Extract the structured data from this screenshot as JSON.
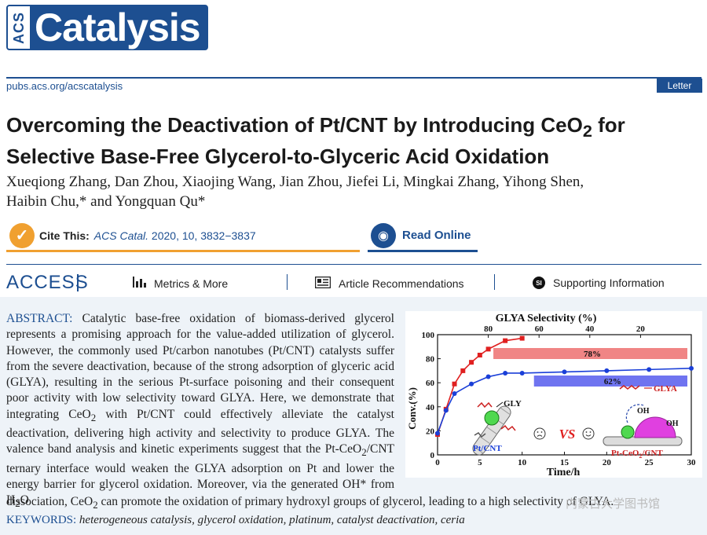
{
  "journal": {
    "logo_acs": "ACS",
    "logo_name": "Catalysis",
    "url": "pubs.acs.org/acscatalysis",
    "article_type": "Letter"
  },
  "article": {
    "title_line1_pre": "Overcoming the Deactivation of Pt/CNT by Introducing CeO",
    "title_line1_sub": "2",
    "title_line1_post": " for",
    "title_line2": "Selective Base-Free Glycerol-to-Glyceric Acid Oxidation",
    "authors_line1": "Xueqiong Zhang, Dan Zhou, Xiaojing Wang, Jian Zhou, Jiefei Li, Mingkai Zhang, Yihong Shen,",
    "authors_line2": "Haibin Chu,* and Yongquan Qu*"
  },
  "cite": {
    "label": "Cite This:",
    "journal_abbr": "ACS Catal.",
    "ref": "2020, 10, 3832−3837"
  },
  "read_online": {
    "label": "Read Online"
  },
  "access": {
    "label": "ACCESS",
    "metrics": "Metrics & More",
    "recommendations": "Article Recommendations",
    "supporting": "Supporting Information",
    "si_icon_text": "SI"
  },
  "abstract": {
    "label": "ABSTRACT:",
    "t1": " Catalytic base-free oxidation of biomass-derived glycerol represents a promising approach for the value-added utilization of glycerol. However, the commonly used Pt/carbon nanotubes (Pt/CNT) catalysts suffer from the severe deactivation, because of the strong adsorption of glyceric acid (GLYA), resulting in the serious Pt-surface poisoning and their consequent poor activity with low selectivity toward GLYA. Here, we demonstrate that integrating CeO",
    "s1": "2",
    "t2": " with Pt/CNT could effectively alleviate the catalyst deactivation, delivering high activity and selectivity to produce GLYA. The valence band analysis and kinetic experiments suggest that the Pt-CeO",
    "s2": "2",
    "t3": "/CNT ternary interface would weaken the GLYA adsorption on Pt and lower the energy barrier for glycerol oxidation. Moreover, via the generated OH* from H",
    "s3": "2",
    "t4": "O",
    "tail_a": "dissociation, CeO",
    "tail_s": "2",
    "tail_b": " can promote the oxidation of primary hydroxyl groups of glycerol, leading to a high selectivity of GLYA."
  },
  "keywords": {
    "label": "KEYWORDS:",
    "text": " heterogeneous catalysis, glycerol oxidation, platinum, catalyst deactivation, ceria"
  },
  "figure": {
    "top_axis_label": "GLYA Selectivity (%)",
    "top_ticks": [
      "80",
      "60",
      "40",
      "20"
    ],
    "bar1_label": "78%",
    "bar2_label": "62%",
    "label_gly": "GLY",
    "label_ptcnt": "Pt/CNT",
    "label_vs": "VS",
    "label_glya": "GLYA",
    "label_oh1": "OH",
    "label_oh2": "OH",
    "label_ptceo2_pre": "Pt-CeO",
    "label_ptceo2_sub": "2",
    "label_ptceo2_post": "/CNT",
    "red": "#e02020",
    "blue": "#1a3fd8",
    "bar_red": "#f08585",
    "bar_blue": "#6f74f0"
  },
  "chart_data": {
    "type": "line",
    "xlabel": "Time/h",
    "ylabel": "Conv.(%)",
    "xlim": [
      0,
      30
    ],
    "ylim": [
      0,
      100
    ],
    "xticks": [
      0,
      5,
      10,
      15,
      20,
      25,
      30
    ],
    "yticks": [
      0,
      20,
      40,
      60,
      80,
      100
    ],
    "top_axis": {
      "label": "GLYA Selectivity (%)",
      "ticks": [
        80,
        60,
        40,
        20
      ]
    },
    "series": [
      {
        "color": "#e02020",
        "x": [
          0,
          1,
          2,
          3,
          4,
          5,
          6,
          8,
          10
        ],
        "y": [
          17,
          38,
          59,
          70,
          77,
          83,
          88,
          95,
          97
        ]
      },
      {
        "color": "#1a3fd8",
        "x": [
          0,
          1,
          2,
          4,
          6,
          8,
          10,
          15,
          20,
          25,
          30
        ],
        "y": [
          18,
          37,
          51,
          59,
          65,
          68,
          68,
          69,
          70,
          71,
          72
        ]
      }
    ],
    "selectivity_bars": [
      {
        "label": "78%",
        "value": 78,
        "color": "#f08585"
      },
      {
        "label": "62%",
        "value": 62,
        "color": "#6f74f0"
      }
    ]
  },
  "watermark": "内蒙古大学图书馆"
}
